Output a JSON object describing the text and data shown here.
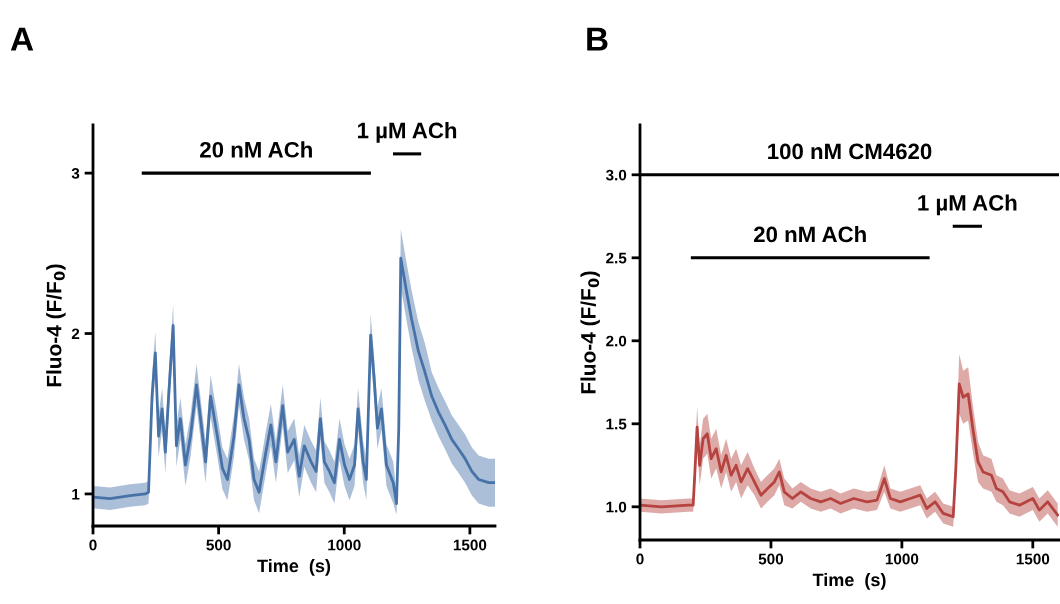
{
  "chart_data": [
    {
      "type": "line",
      "title": "A",
      "xlabel": "Time  (s)",
      "ylabel": "Fluo-4 (F/F$_{0}$)",
      "xlim": [
        0,
        1600
      ],
      "ylim": [
        0.8,
        3.3
      ],
      "xticks": [
        0,
        500,
        1000,
        1500
      ],
      "yticks": [
        1,
        2,
        3
      ],
      "series": [
        {
          "color": "#4672a8",
          "x": [
            0,
            68,
            148,
            208,
            221,
            235,
            248,
            261,
            275,
            288,
            301,
            319,
            332,
            348,
            368,
            388,
            412,
            428,
            448,
            468,
            495,
            515,
            535,
            561,
            581,
            601,
            621,
            641,
            661,
            688,
            708,
            728,
            755,
            775,
            801,
            821,
            841,
            868,
            888,
            905,
            921,
            941,
            961,
            981,
            1001,
            1021,
            1041,
            1055,
            1075,
            1088,
            1105,
            1119,
            1132,
            1148,
            1168,
            1195,
            1208,
            1217,
            1225,
            1248,
            1268,
            1295,
            1321,
            1348,
            1375,
            1401,
            1428,
            1455,
            1481,
            1508,
            1535,
            1575,
            1600
          ],
          "values": [
            0.98,
            0.97,
            0.99,
            1.0,
            1.01,
            1.61,
            1.88,
            1.36,
            1.53,
            1.26,
            1.61,
            2.05,
            1.3,
            1.47,
            1.18,
            1.36,
            1.68,
            1.47,
            1.2,
            1.61,
            1.36,
            1.16,
            1.09,
            1.36,
            1.68,
            1.47,
            1.34,
            1.09,
            1.01,
            1.26,
            1.43,
            1.2,
            1.55,
            1.26,
            1.34,
            1.11,
            1.3,
            1.2,
            1.14,
            1.47,
            1.2,
            1.14,
            1.07,
            1.34,
            1.18,
            1.09,
            1.18,
            1.53,
            1.2,
            1.09,
            1.99,
            1.72,
            1.41,
            1.53,
            1.18,
            1.07,
            0.94,
            1.41,
            2.47,
            2.26,
            2.09,
            1.89,
            1.76,
            1.61,
            1.51,
            1.43,
            1.34,
            1.28,
            1.22,
            1.14,
            1.09,
            1.07,
            1.07
          ],
          "lower": [
            0.91,
            0.9,
            0.92,
            0.93,
            0.94,
            1.48,
            1.75,
            1.23,
            1.4,
            1.13,
            1.48,
            1.92,
            1.17,
            1.34,
            1.05,
            1.23,
            1.55,
            1.34,
            1.07,
            1.48,
            1.23,
            1.03,
            0.96,
            1.23,
            1.55,
            1.34,
            1.21,
            0.96,
            0.88,
            1.13,
            1.3,
            1.07,
            1.42,
            1.13,
            1.21,
            0.98,
            1.17,
            1.07,
            1.01,
            1.34,
            1.07,
            1.01,
            0.94,
            1.21,
            1.05,
            0.96,
            1.05,
            1.4,
            1.07,
            0.96,
            1.86,
            1.59,
            1.28,
            1.4,
            1.05,
            0.94,
            0.87,
            1.28,
            2.29,
            2.08,
            1.91,
            1.71,
            1.58,
            1.46,
            1.36,
            1.28,
            1.19,
            1.13,
            1.07,
            0.99,
            0.94,
            0.92,
            0.92
          ],
          "upper": [
            1.05,
            1.04,
            1.06,
            1.07,
            1.08,
            1.74,
            2.01,
            1.49,
            1.66,
            1.39,
            1.74,
            2.18,
            1.43,
            1.6,
            1.31,
            1.49,
            1.81,
            1.6,
            1.33,
            1.74,
            1.49,
            1.29,
            1.22,
            1.49,
            1.81,
            1.6,
            1.47,
            1.22,
            1.14,
            1.39,
            1.56,
            1.33,
            1.68,
            1.39,
            1.47,
            1.24,
            1.43,
            1.33,
            1.27,
            1.6,
            1.33,
            1.27,
            1.2,
            1.47,
            1.31,
            1.22,
            1.31,
            1.66,
            1.33,
            1.22,
            2.12,
            1.85,
            1.54,
            1.66,
            1.31,
            1.2,
            1.01,
            1.54,
            2.65,
            2.44,
            2.27,
            2.07,
            1.94,
            1.76,
            1.66,
            1.58,
            1.49,
            1.43,
            1.37,
            1.29,
            1.24,
            1.22,
            1.22
          ]
        },
        {
          "color": "#000000",
          "x": [
            200,
            1100
          ],
          "values": [
            3.0,
            3.0
          ]
        },
        {
          "color": "#000000",
          "x": [
            1200,
            1300
          ],
          "values": [
            3.12,
            3.12
          ]
        }
      ],
      "annotations": [
        {
          "text": "20 nM ACh",
          "x": 650,
          "y": 3.0
        },
        {
          "text": "1 µM ACh",
          "x": 1250,
          "y": 3.12
        }
      ]
    },
    {
      "type": "line",
      "title": "B",
      "xlabel": "Time  (s)",
      "ylabel": "Fluo-4 (F/F$_{0}$)",
      "xlim": [
        0,
        1600
      ],
      "ylim": [
        0.8,
        3.3
      ],
      "xticks": [
        0,
        500,
        1000,
        1500
      ],
      "yticks": [
        {
          "value": 1,
          "label": "1.0"
        },
        1.5,
        {
          "value": 2,
          "label": "2.0"
        },
        2.5,
        {
          "value": 3,
          "label": "3.0"
        }
      ],
      "series": [
        {
          "color": "#b5433f",
          "x": [
            0,
            82,
            184,
            203,
            209,
            218,
            228,
            241,
            257,
            272,
            291,
            310,
            329,
            348,
            367,
            386,
            411,
            437,
            462,
            487,
            513,
            532,
            551,
            582,
            614,
            652,
            690,
            728,
            766,
            816,
            867,
            905,
            933,
            956,
            994,
            1032,
            1070,
            1095,
            1127,
            1158,
            1196,
            1206,
            1219,
            1234,
            1253,
            1272,
            1291,
            1310,
            1342,
            1361,
            1386,
            1411,
            1449,
            1500,
            1525,
            1557,
            1595
          ],
          "values": [
            1.01,
            1.0,
            1.01,
            1.01,
            1.19,
            1.48,
            1.25,
            1.41,
            1.44,
            1.29,
            1.35,
            1.21,
            1.31,
            1.19,
            1.25,
            1.15,
            1.23,
            1.15,
            1.07,
            1.11,
            1.15,
            1.21,
            1.09,
            1.05,
            1.09,
            1.05,
            1.03,
            1.05,
            1.02,
            1.05,
            1.03,
            1.04,
            1.17,
            1.05,
            1.03,
            1.05,
            1.07,
            0.99,
            1.03,
            0.96,
            0.94,
            1.23,
            1.74,
            1.66,
            1.68,
            1.46,
            1.27,
            1.21,
            1.19,
            1.11,
            1.09,
            1.03,
            1.01,
            1.05,
            0.98,
            1.03,
            0.95
          ],
          "lower": [
            0.97,
            0.96,
            0.97,
            0.97,
            1.09,
            1.36,
            1.13,
            1.29,
            1.32,
            1.17,
            1.23,
            1.11,
            1.21,
            1.09,
            1.15,
            1.05,
            1.13,
            1.07,
            0.99,
            1.03,
            1.07,
            1.13,
            1.01,
            0.99,
            1.03,
            0.99,
            0.97,
            0.99,
            0.96,
            0.99,
            0.97,
            0.98,
            1.09,
            0.99,
            0.97,
            0.99,
            1.01,
            0.93,
            0.97,
            0.9,
            0.88,
            1.13,
            1.56,
            1.5,
            1.52,
            1.32,
            1.15,
            1.11,
            1.09,
            1.03,
            1.01,
            0.96,
            0.94,
            0.98,
            0.91,
            0.96,
            0.88
          ],
          "upper": [
            1.05,
            1.04,
            1.05,
            1.05,
            1.29,
            1.6,
            1.37,
            1.53,
            1.56,
            1.41,
            1.47,
            1.31,
            1.41,
            1.29,
            1.35,
            1.25,
            1.33,
            1.23,
            1.15,
            1.19,
            1.23,
            1.29,
            1.17,
            1.11,
            1.15,
            1.11,
            1.09,
            1.11,
            1.08,
            1.11,
            1.09,
            1.1,
            1.25,
            1.11,
            1.09,
            1.11,
            1.13,
            1.05,
            1.09,
            1.02,
            1.0,
            1.33,
            1.92,
            1.82,
            1.84,
            1.6,
            1.39,
            1.31,
            1.29,
            1.19,
            1.17,
            1.1,
            1.08,
            1.12,
            1.05,
            1.1,
            1.02
          ]
        },
        {
          "color": "#000000",
          "x": [
            0,
            1600
          ],
          "values": [
            3.0,
            3.0
          ]
        },
        {
          "color": "#000000",
          "x": [
            200,
            1100
          ],
          "values": [
            2.5,
            2.5
          ]
        },
        {
          "color": "#000000",
          "x": [
            1200,
            1300
          ],
          "values": [
            2.69,
            2.69
          ]
        }
      ],
      "annotations": [
        {
          "text": "100 nM CM4620",
          "x": 800,
          "y": 3.0
        },
        {
          "text": "20 nM ACh",
          "x": 650,
          "y": 2.5
        },
        {
          "text": "1 µM ACh",
          "x": 1250,
          "y": 2.69
        }
      ]
    }
  ]
}
